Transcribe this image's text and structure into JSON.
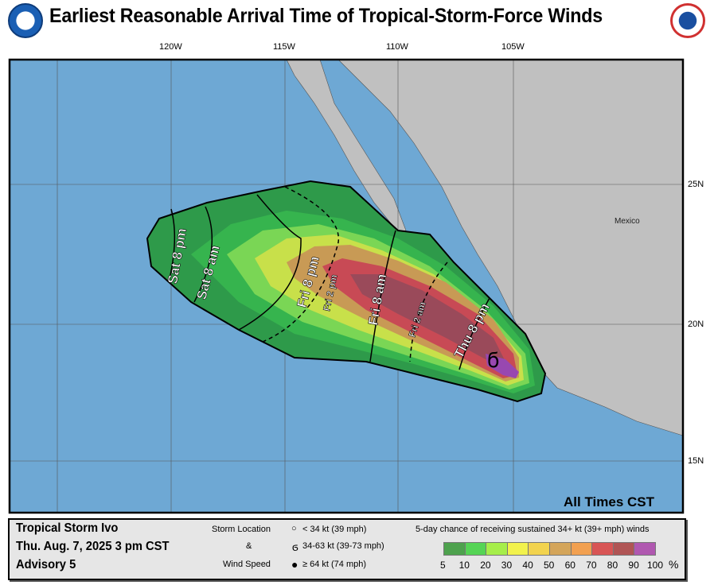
{
  "title": "Earliest Reasonable Arrival Time of Tropical-Storm-Force Winds",
  "logos": {
    "left": "NOAA",
    "right": "National Weather Service"
  },
  "map": {
    "longitude_labels": [
      "120W",
      "115W",
      "110W",
      "105W"
    ],
    "latitude_labels": [
      "25N",
      "20N",
      "15N"
    ],
    "country_label": "Mexico",
    "timezone_note": "All Times CST",
    "arrival_contours": [
      {
        "day": "Sat",
        "time": "8 pm",
        "style": "solid"
      },
      {
        "day": "Sat",
        "time": "8 am",
        "style": "solid"
      },
      {
        "day": "Fri",
        "time": "8 pm",
        "style": "solid"
      },
      {
        "day": "Fri",
        "time": "2 pm",
        "style": "dashed"
      },
      {
        "day": "Fri",
        "time": "8 am",
        "style": "solid"
      },
      {
        "day": "Fri",
        "time": "2 am",
        "style": "dashed"
      },
      {
        "day": "Thu",
        "time": "8 pm",
        "style": "solid"
      }
    ],
    "storm_symbol": "tropical-storm-icon"
  },
  "legend": {
    "storm_name": "Tropical Storm Ivo",
    "datetime": "Thu. Aug. 7, 2025  3 pm CST",
    "advisory": "Advisory 5",
    "storm_location_label": "Storm Location",
    "amp": "&",
    "wind_speed_label": "Wind Speed",
    "symbols": [
      {
        "icon": "open-circle-icon",
        "label": "< 34 kt (39 mph)"
      },
      {
        "icon": "tropical-storm-icon",
        "label": "34-63 kt (39-73 mph)"
      },
      {
        "icon": "hurricane-icon",
        "label": "≥ 64 kt (74 mph)"
      }
    ],
    "scale_title": "5-day chance of receiving sustained 34+ kt (39+ mph) winds",
    "scale_colors": [
      "#4ea24e",
      "#55d455",
      "#a6ee4a",
      "#f2f24c",
      "#f2d34e",
      "#d4a55a",
      "#f2a050",
      "#d85555",
      "#b05555",
      "#b058b0"
    ],
    "scale_ticks": [
      "5",
      "10",
      "20",
      "30",
      "40",
      "50",
      "60",
      "70",
      "80",
      "90",
      "100"
    ],
    "unit": "%"
  }
}
